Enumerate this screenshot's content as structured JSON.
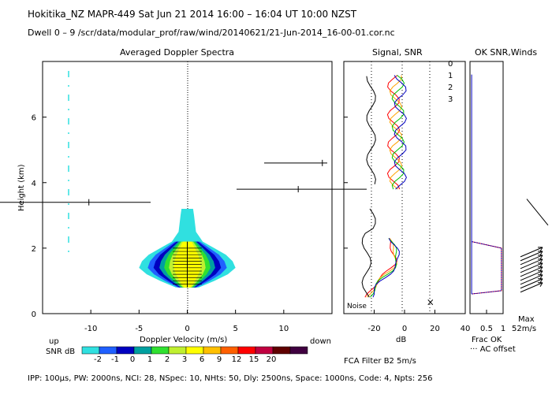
{
  "header": {
    "title": "Hokitika_NZ  MAPR-449  Sat Jun 21 2014 16:00 – 16:04 UT 10:00 NZST",
    "subtitle": "Dwell  0 –  9   /scr/data/modular_prof/raw/wind/20140621/21-Jun-2014_16-00-01.cor.nc",
    "footer": "IPP: 100µs,  PW: 2000ns,  NCI:  28,  NSpec: 10,  NHts: 50,  Dly: 2500ns,  Space: 1000ns,  Code: 4,  Npts: 256"
  },
  "panels": {
    "spectra_title": "Averaged Doppler Spectra",
    "signal_title": "Signal, SNR",
    "winds_title": "OK SNR,Winds",
    "filter_label": "FCA Filter B2  5m/s",
    "noise_label": "Noise",
    "frac_ok_label": "Frac OK",
    "ac_offset_label": "··· AC offset",
    "max_label": "Max",
    "max_value": "52m/s",
    "up_label": "up",
    "down_label": "down",
    "snr_scale_label": "SNR dB"
  },
  "chart_data": {
    "type": "heatmap",
    "title": "Averaged Doppler Spectra",
    "xlabel": "Doppler Velocity (m/s)",
    "ylabel": "Height (km)",
    "xlim": [
      -15,
      15
    ],
    "ylim": [
      0,
      7.7
    ],
    "xticks": [
      -10,
      -5,
      0,
      5,
      10
    ],
    "yticks": [
      0,
      2,
      4,
      6
    ],
    "spectra_extent": [
      {
        "h": 0.8,
        "half": 1.2
      },
      {
        "h": 1.0,
        "half": 2.8
      },
      {
        "h": 1.2,
        "half": 4.2
      },
      {
        "h": 1.4,
        "half": 5.0
      },
      {
        "h": 1.6,
        "half": 4.7
      },
      {
        "h": 1.8,
        "half": 4.0
      },
      {
        "h": 2.0,
        "half": 2.8
      },
      {
        "h": 2.2,
        "half": 1.6
      },
      {
        "h": 2.5,
        "half": 0.9
      },
      {
        "h": 3.0,
        "half": 0.7
      },
      {
        "h": 3.2,
        "half": 0.6
      }
    ],
    "interference_lines": [
      {
        "h": 3.4,
        "x_from": -15,
        "x_to": -3.8,
        "marker": -10.2
      },
      {
        "h": 3.8,
        "x_from": 5,
        "x_to": 15,
        "marker": 11.5
      },
      {
        "h": 4.6,
        "x_from": 8,
        "x_to": 15,
        "marker": 14.0
      }
    ],
    "colorbar": {
      "label": "SNR dB",
      "ticks": [
        "-2",
        "-1",
        "0",
        "1",
        "2",
        "3",
        "6",
        "9",
        "12",
        "15",
        "20"
      ],
      "colors": [
        "#30e0e0",
        "#2060ff",
        "#0000c0",
        "#00a0a0",
        "#30e030",
        "#c0f030",
        "#ffff00",
        "#ffc000",
        "#ff6000",
        "#ff0000",
        "#c00040",
        "#600000",
        "#400040"
      ]
    },
    "signal_panel": {
      "xlabel": "dB",
      "xlim": [
        -40,
        40
      ],
      "xticks": [
        -20,
        0,
        20,
        40
      ],
      "series": [
        {
          "name": "0",
          "color": "#ff0000"
        },
        {
          "name": "1",
          "color": "#ffa500"
        },
        {
          "name": "2",
          "color": "#00c000"
        },
        {
          "name": "3",
          "color": "#0000c0"
        }
      ]
    },
    "winds_panel": {
      "xlim": [
        0,
        1
      ],
      "xticks": [
        "0.5",
        "1"
      ],
      "xlabel": "Frac OK"
    }
  }
}
